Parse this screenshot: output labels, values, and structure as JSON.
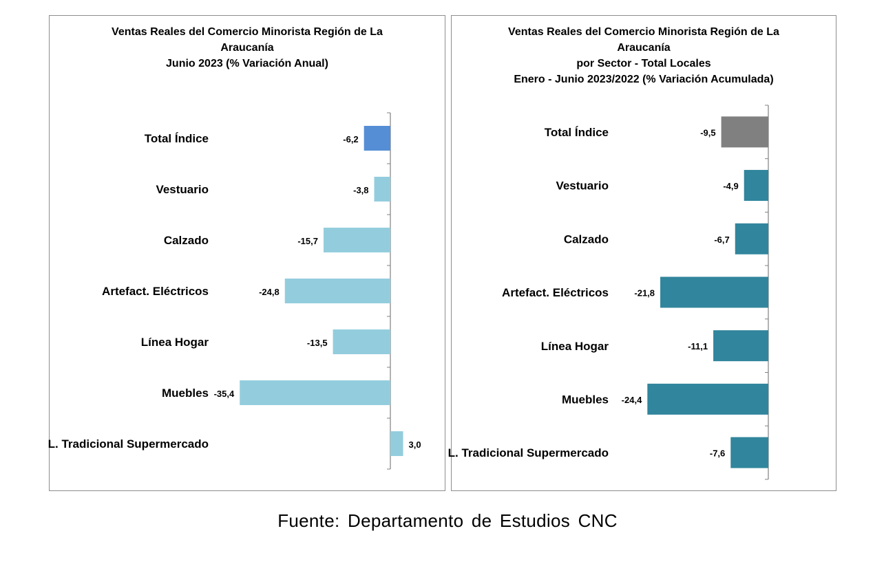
{
  "source": "Fuente: Departamento de Estudios CNC",
  "chart_data": [
    {
      "type": "bar",
      "orientation": "horizontal",
      "title_lines": [
        "Ventas Reales del Comercio Minorista  Región de La",
        "Araucanía",
        "Junio 2023 (% Variación Anual)"
      ],
      "categories": [
        "Total Índice",
        "Vestuario",
        "Calzado",
        "Artefact. Eléctricos",
        "Línea Hogar",
        "Muebles",
        "L. Tradicional Supermercado"
      ],
      "values": [
        -6.2,
        -3.8,
        -15.7,
        -24.8,
        -13.5,
        -35.4,
        3.0
      ],
      "value_labels": [
        "-6,2",
        "-3,8",
        "-15,7",
        "-24,8",
        "-13,5",
        "-35,4",
        "3,0"
      ],
      "colors": [
        "#558ED5",
        "#93CDDD",
        "#93CDDD",
        "#93CDDD",
        "#93CDDD",
        "#93CDDD",
        "#93CDDD"
      ],
      "xlim": [
        -40,
        5
      ],
      "grid": false,
      "legend": "none"
    },
    {
      "type": "bar",
      "orientation": "horizontal",
      "title_lines": [
        "Ventas Reales del Comercio Minorista Región de La",
        "Araucanía",
        "por Sector - Total Locales",
        "Enero - Junio 2023/2022 (% Variación Acumulada)"
      ],
      "categories": [
        "Total Índice",
        "Vestuario",
        "Calzado",
        "Artefact. Eléctricos",
        "Línea Hogar",
        "Muebles",
        "L. Tradicional Supermercado"
      ],
      "values": [
        -9.5,
        -4.9,
        -6.7,
        -21.8,
        -11.1,
        -24.4,
        -7.6
      ],
      "value_labels": [
        "-9,5",
        "-4,9",
        "-6,7",
        "-21,8",
        "-11,1",
        "-24,4",
        "-7,6"
      ],
      "colors": [
        "#808080",
        "#31859C",
        "#31859C",
        "#31859C",
        "#31859C",
        "#31859C",
        "#31859C"
      ],
      "xlim": [
        -30,
        0
      ],
      "grid": false,
      "legend": "none"
    }
  ]
}
